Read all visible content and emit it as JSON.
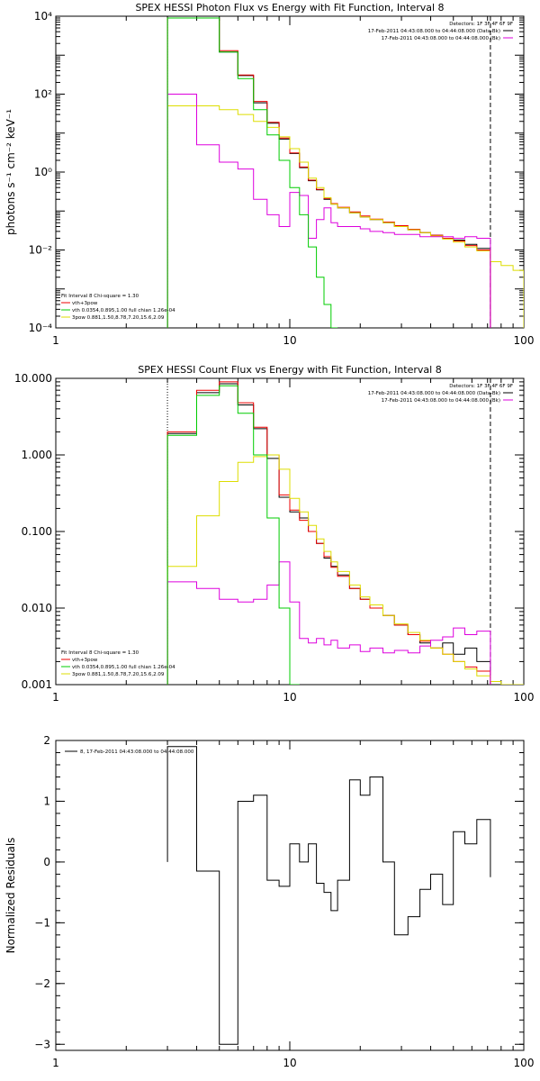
{
  "chart_data": [
    {
      "type": "line",
      "title": "SPEX HESSI Photon Flux vs Energy with Fit Function, Interval 8",
      "xlabel": "",
      "ylabel": "photons s⁻¹ cm⁻² keV⁻¹",
      "xscale": "log",
      "yscale": "log",
      "xlim": [
        1,
        100
      ],
      "ylim": [
        0.0001,
        10000
      ],
      "xticks": [
        "1",
        "10",
        "100"
      ],
      "yticks": [
        "10⁻⁴",
        "10⁻²",
        "10⁰",
        "10²",
        "10⁴"
      ],
      "vlines": [
        3.0,
        72.0
      ],
      "header": {
        "detectors": "Detectors: 1F 3F 4F 6F 9F",
        "line1": "17-Feb-2011 04:43:08.000 to 04:44:08.000 (Data-Bk)",
        "line2": "17-Feb-2011 04:43:08.000 to 04:44:08.000 (Bk)"
      },
      "legend": {
        "head": "Fit Interval  8    Chi-square = 1.30",
        "items": [
          "vth+3pow",
          "vth 0.0354,0.895,1.00  full chian 1.26e-04",
          "3pow 0.881,1.50,8.78,7.20,15.6,2.09"
        ]
      },
      "edges": [
        3.0,
        4.0,
        5.0,
        6.0,
        7.0,
        8.0,
        9.0,
        10.0,
        11.0,
        12.0,
        13.0,
        14.0,
        15.0,
        16.0,
        18.0,
        20.0,
        22.0,
        25.0,
        28.0,
        32.0,
        36.0,
        40.0,
        45.0,
        50.0,
        56.0,
        63.0,
        72.0,
        80.0,
        90.0,
        100.0
      ],
      "series": [
        {
          "name": "Data-Bk",
          "color": "#000000",
          "values": [
            9000,
            9000,
            1200,
            300,
            60,
            18,
            7,
            3,
            1.3,
            0.6,
            0.35,
            0.2,
            0.15,
            0.12,
            0.09,
            0.07,
            0.06,
            0.05,
            0.04,
            0.033,
            0.028,
            0.024,
            0.02,
            0.018,
            0.014,
            0.011,
            null,
            null,
            null
          ]
        },
        {
          "name": "vth+3pow",
          "color": "#ee0000",
          "values": [
            9000,
            9000,
            1300,
            310,
            65,
            19,
            7.5,
            3.1,
            1.35,
            0.62,
            0.36,
            0.21,
            0.155,
            0.125,
            0.095,
            0.075,
            0.062,
            0.052,
            0.042,
            0.034,
            0.028,
            0.024,
            0.02,
            0.017,
            0.013,
            0.01,
            null,
            null,
            null
          ]
        },
        {
          "name": "vth",
          "color": "#00cc00",
          "values": [
            9000,
            9000,
            1200,
            250,
            40,
            9,
            2,
            0.4,
            0.08,
            0.012,
            0.002,
            0.0004,
            0.0001,
            null,
            null,
            null,
            null,
            null,
            null,
            null,
            null,
            null,
            null,
            null,
            null,
            null,
            null,
            null,
            null
          ]
        },
        {
          "name": "3pow",
          "color": "#dddd00",
          "values": [
            50,
            50,
            40,
            30,
            20,
            14,
            8,
            4,
            1.8,
            0.7,
            0.4,
            0.22,
            0.15,
            0.12,
            0.09,
            0.07,
            0.06,
            0.05,
            0.04,
            0.033,
            0.028,
            0.023,
            0.019,
            0.016,
            0.012,
            0.0095,
            0.005,
            0.004,
            0.003
          ]
        },
        {
          "name": "Bk",
          "color": "#dd00dd",
          "values": [
            100,
            5,
            1.8,
            1.2,
            0.2,
            0.08,
            0.04,
            0.3,
            0.25,
            0.02,
            0.06,
            0.12,
            0.05,
            0.04,
            0.04,
            0.035,
            0.03,
            0.028,
            0.025,
            0.025,
            0.022,
            0.022,
            0.022,
            0.02,
            0.022,
            0.02,
            null,
            null,
            null
          ]
        }
      ]
    },
    {
      "type": "line",
      "title": "SPEX HESSI Count Flux vs Energy with Fit Function, Interval 8",
      "xlabel": "",
      "ylabel": "",
      "xscale": "log",
      "yscale": "log",
      "xlim": [
        1,
        100
      ],
      "ylim": [
        0.001,
        10
      ],
      "xticks": [
        "1",
        "10",
        "100"
      ],
      "yticks": [
        "0.001",
        "0.010",
        "0.100",
        "1.000",
        "10.000"
      ],
      "vlines": [
        3.0,
        72.0
      ],
      "header": {
        "detectors": "Detectors: 1F 3F 4F 6F 9F",
        "line1": "17-Feb-2011 04:43:08.000 to 04:44:08.000 (Data-Bk)",
        "line2": "17-Feb-2011 04:43:08.000 to 04:44:08.000 (Bk)"
      },
      "legend": {
        "head": "Fit Interval  8    Chi-square = 1.30",
        "items": [
          "vth+3pow",
          "vth 0.0354,0.895,1.00  full chian 1.26e-04",
          "3pow 0.881,1.50,8.78,7.20,15.6,2.09"
        ]
      },
      "edges": [
        3.0,
        4.0,
        5.0,
        6.0,
        7.0,
        8.0,
        9.0,
        10.0,
        11.0,
        12.0,
        13.0,
        14.0,
        15.0,
        16.0,
        18.0,
        20.0,
        22.0,
        25.0,
        28.0,
        32.0,
        36.0,
        40.0,
        45.0,
        50.0,
        56.0,
        63.0,
        72.0,
        80.0,
        90.0,
        100.0
      ],
      "series": [
        {
          "name": "Data-Bk",
          "color": "#000000",
          "values": [
            1.9,
            6.5,
            8.5,
            4.5,
            2.2,
            0.9,
            0.28,
            0.18,
            0.15,
            0.1,
            0.07,
            0.045,
            0.035,
            0.027,
            0.018,
            0.013,
            0.01,
            0.008,
            0.006,
            0.0045,
            0.0035,
            0.003,
            0.0035,
            0.0025,
            0.003,
            0.002,
            null,
            null,
            null
          ]
        },
        {
          "name": "vth+3pow",
          "color": "#ee0000",
          "values": [
            2.0,
            7.0,
            9.0,
            4.8,
            2.3,
            1.0,
            0.3,
            0.19,
            0.14,
            0.1,
            0.07,
            0.047,
            0.034,
            0.026,
            0.018,
            0.013,
            0.01,
            0.008,
            0.006,
            0.0045,
            0.0037,
            0.003,
            0.0025,
            0.002,
            0.0017,
            0.0015,
            null,
            null,
            null
          ]
        },
        {
          "name": "vth",
          "color": "#00cc00",
          "values": [
            1.8,
            6.0,
            8.0,
            3.5,
            1.0,
            0.15,
            0.01,
            0.001,
            null,
            null,
            null,
            null,
            null,
            null,
            null,
            null,
            null,
            null,
            null,
            null,
            null,
            null,
            null,
            null,
            null,
            null,
            null,
            null,
            null
          ]
        },
        {
          "name": "3pow",
          "color": "#dddd00",
          "values": [
            0.035,
            0.16,
            0.45,
            0.8,
            0.95,
            1.0,
            0.65,
            0.27,
            0.18,
            0.12,
            0.08,
            0.055,
            0.04,
            0.03,
            0.02,
            0.014,
            0.011,
            0.008,
            0.0062,
            0.0048,
            0.0038,
            0.003,
            0.0025,
            0.002,
            0.0016,
            0.0013,
            0.0011,
            0.001,
            0.001
          ]
        },
        {
          "name": "Bk",
          "color": "#dd00dd",
          "values": [
            0.022,
            0.018,
            0.013,
            0.012,
            0.013,
            0.02,
            0.04,
            0.012,
            0.004,
            0.0035,
            0.004,
            0.0033,
            0.0038,
            0.003,
            0.0033,
            0.0027,
            0.003,
            0.0026,
            0.0028,
            0.0026,
            0.0032,
            0.0038,
            0.0042,
            0.0055,
            0.0045,
            0.005,
            null,
            null,
            null
          ]
        }
      ]
    },
    {
      "type": "line",
      "title": "",
      "xlabel": "",
      "ylabel": "Normalized Residuals",
      "xscale": "log",
      "yscale": "linear",
      "xlim": [
        1,
        100
      ],
      "ylim": [
        -3.1,
        2.0
      ],
      "xticks": [
        "1",
        "10",
        "100"
      ],
      "yticks": [
        "−3",
        "−2",
        "−1",
        "0",
        "1",
        "2"
      ],
      "legend_label": "8, 17-Feb-2011 04:43:08.000 to 04:44:08.000",
      "edges": [
        3.0,
        4.0,
        5.0,
        6.0,
        7.0,
        8.0,
        9.0,
        10.0,
        11.0,
        12.0,
        13.0,
        14.0,
        15.0,
        16.0,
        18.0,
        20.0,
        22.0,
        25.0,
        28.0,
        32.0,
        36.0,
        40.0,
        45.0,
        50.0,
        56.0,
        63.0,
        72.0
      ],
      "series": [
        {
          "name": "8, 17-Feb-2011 04:43:08.000 to 04:44:08.000",
          "color": "#000000",
          "values": [
            1.9,
            -0.15,
            -3.0,
            1.0,
            1.1,
            -0.3,
            -0.4,
            0.3,
            0.0,
            0.3,
            -0.35,
            -0.5,
            -0.8,
            -0.3,
            1.35,
            1.1,
            1.4,
            0.0,
            -1.2,
            -0.9,
            -0.45,
            -0.2,
            -0.7,
            0.5,
            0.3,
            0.7,
            -0.25
          ]
        }
      ]
    }
  ]
}
